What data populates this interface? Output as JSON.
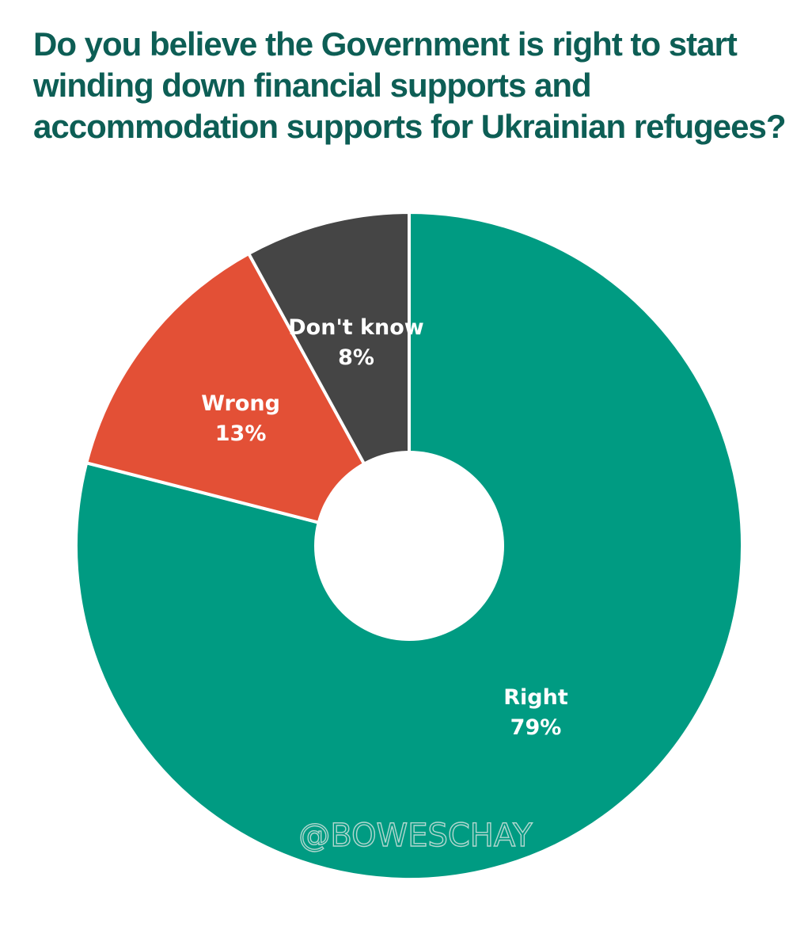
{
  "chart_data": {
    "type": "pie",
    "donut": true,
    "title": "Do you believe the Government is right to start winding down financial supports and accommodation supports for Ukrainian refugees?",
    "slices": [
      {
        "label": "Right",
        "value": 79,
        "value_label": "79%",
        "color": "#009b82"
      },
      {
        "label": "Wrong",
        "value": 13,
        "value_label": "13%",
        "color": "#e35036"
      },
      {
        "label": "Don't know",
        "value": 8,
        "value_label": "8%",
        "color": "#454545"
      }
    ],
    "start_angle": "12 o'clock",
    "direction": "clockwise",
    "legend": "none"
  },
  "watermark": "@BOWESCHAY",
  "colors": {
    "title": "#0d5e55",
    "separator": "#ffffff",
    "label_text": "#ffffff"
  }
}
